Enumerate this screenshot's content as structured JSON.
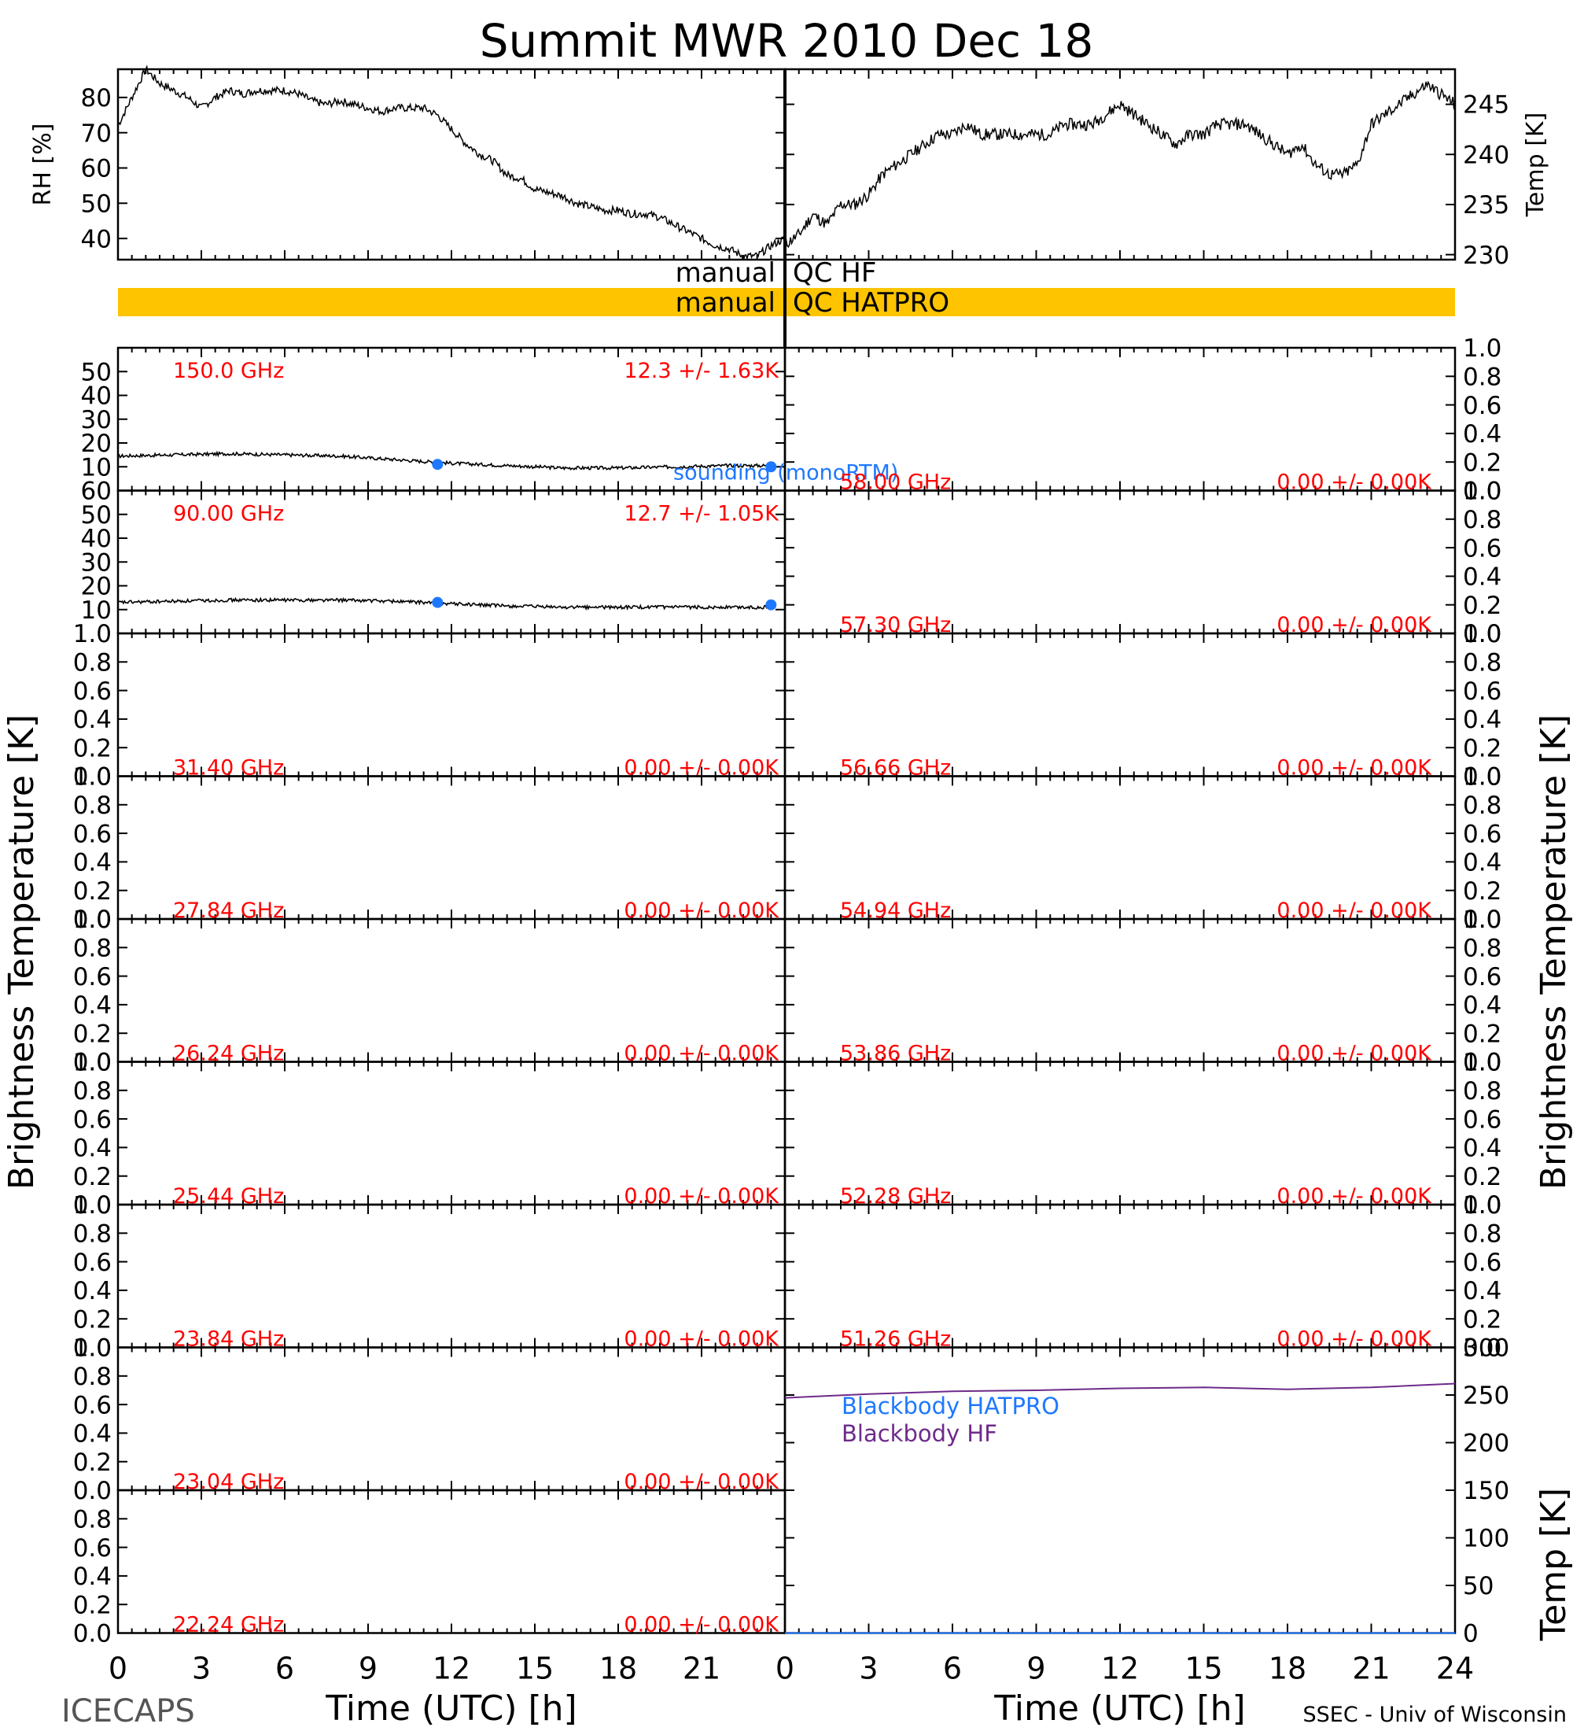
{
  "title": "Summit MWR 2010 Dec 18",
  "footer_left": "ICECAPS",
  "footer_right": "SSEC - Univ of Wisconsin",
  "qc": {
    "hf_label": "manual QC HF",
    "hatpro_label": "manual QC HATPRO"
  },
  "colors": {
    "axis": "#000000",
    "channel_label": "#ff0000",
    "sounding": "#1e78ff",
    "qc_hatpro_bar": "#ffc400",
    "blackbody_hatpro": "#1e78ff",
    "blackbody_hf": "#6e2a8a"
  },
  "chart_data": [
    {
      "id": "rh",
      "type": "line",
      "ylabel": "RH [%]",
      "xlim": [
        0,
        24
      ],
      "ylim": [
        34,
        88
      ],
      "yticks": [
        40,
        50,
        60,
        70,
        80
      ],
      "x": [
        0,
        0.5,
        1,
        1.5,
        2,
        2.5,
        3,
        3.5,
        4,
        4.5,
        5,
        5.5,
        6,
        6.5,
        7,
        7.5,
        8,
        8.5,
        9,
        9.5,
        10,
        10.5,
        11,
        11.5,
        12,
        12.5,
        13,
        13.5,
        14,
        14.5,
        15,
        15.5,
        16,
        16.5,
        17,
        17.5,
        18,
        18.5,
        19,
        19.5,
        20,
        20.5,
        21,
        21.5,
        22,
        22.5,
        23,
        23.5,
        24
      ],
      "values": [
        72,
        80,
        88,
        84,
        82,
        80,
        77,
        80,
        82,
        81,
        82,
        82,
        82,
        81,
        79,
        78,
        79,
        78,
        77,
        76,
        77,
        77,
        77,
        75,
        71,
        67,
        64,
        62,
        58,
        57,
        54,
        53,
        52,
        50,
        49,
        48,
        48,
        47,
        47,
        46,
        44,
        42,
        40,
        38,
        37,
        35,
        35,
        38,
        40
      ]
    },
    {
      "id": "temp",
      "type": "line",
      "ylabel": "Temp [K]",
      "xlim": [
        0,
        24
      ],
      "ylim": [
        229.5,
        248.5
      ],
      "yticks": [
        230,
        235,
        240,
        245
      ],
      "x": [
        0,
        0.5,
        1,
        1.5,
        2,
        2.5,
        3,
        3.5,
        4,
        4.5,
        5,
        5.5,
        6,
        6.5,
        7,
        7.5,
        8,
        8.5,
        9,
        9.5,
        10,
        10.5,
        11,
        11.5,
        12,
        12.5,
        13,
        13.5,
        14,
        14.5,
        15,
        15.5,
        16,
        16.5,
        17,
        17.5,
        18,
        18.5,
        19,
        19.5,
        20,
        20.5,
        21,
        21.5,
        22,
        22.5,
        23,
        23.5,
        24
      ],
      "values": [
        231,
        232,
        234,
        233,
        235,
        235,
        236,
        238,
        239,
        240,
        241,
        242,
        242,
        243,
        242,
        242,
        242,
        242,
        242,
        242,
        243,
        243,
        243,
        244,
        245,
        244,
        243,
        242,
        241,
        242,
        242,
        243,
        243,
        243,
        242,
        241,
        240,
        241,
        239,
        238,
        238,
        239,
        243,
        244,
        245,
        246,
        247,
        246,
        245
      ]
    },
    {
      "id": "blackbody",
      "type": "line",
      "ylabel": "Temp [K]",
      "xlim": [
        0,
        24
      ],
      "ylim": [
        0,
        300
      ],
      "yticks": [
        0,
        50,
        100,
        150,
        200,
        250,
        300
      ],
      "xlabel": "Time (UTC) [h]",
      "xticks": [
        0,
        3,
        6,
        9,
        12,
        15,
        18,
        21,
        24
      ],
      "series": [
        {
          "name": "Blackbody HATPRO",
          "x": [
            0,
            24
          ],
          "values": [
            0,
            0
          ]
        },
        {
          "name": "Blackbody HF",
          "x": [
            0,
            3,
            6,
            9,
            12,
            15,
            18,
            21,
            24
          ],
          "values": [
            247,
            251,
            254,
            255,
            257,
            258,
            256,
            258,
            262
          ]
        }
      ]
    },
    {
      "id": "tb_channels",
      "type": "line",
      "ylabel": "Brightness Temperature [K]",
      "xlabel": "Time (UTC) [h]",
      "xlim": [
        0,
        24
      ],
      "xticks": [
        0,
        3,
        6,
        9,
        12,
        15,
        18,
        21
      ],
      "sounding_label": "sounding (monoRTM)",
      "panels": [
        {
          "column": "left",
          "label": "150.0 GHz",
          "stats": "12.3 +/- 1.63K",
          "ylim": [
            0,
            60
          ],
          "yticks": [
            10,
            20,
            30,
            40,
            50
          ],
          "x": [
            0,
            2,
            4,
            6,
            8,
            10,
            12,
            14,
            16,
            18,
            20,
            22,
            23.5
          ],
          "values": [
            14.5,
            15,
            15.5,
            15,
            14.5,
            13,
            11.5,
            10.5,
            9.5,
            9.5,
            10,
            10.5,
            10.5
          ],
          "sounding_x": [
            11.5,
            23.5
          ],
          "sounding_values": [
            11,
            10
          ]
        },
        {
          "column": "left",
          "label": "90.00 GHz",
          "stats": "12.7 +/- 1.05K",
          "ylim": [
            0,
            60
          ],
          "yticks": [
            10,
            20,
            30,
            40,
            50,
            60
          ],
          "x": [
            0,
            2,
            4,
            6,
            8,
            10,
            12,
            14,
            16,
            18,
            20,
            22,
            23.5
          ],
          "values": [
            13,
            13.5,
            14,
            14,
            14,
            13.5,
            12.5,
            11.5,
            11,
            11,
            11,
            11,
            11
          ],
          "sounding_x": [
            11.5,
            23.5
          ],
          "sounding_values": [
            13,
            12
          ]
        },
        {
          "column": "left",
          "label": "31.40 GHz",
          "stats": "0.00 +/- 0.00K",
          "ylim": [
            0,
            1
          ],
          "yticks": [
            0.0,
            0.2,
            0.4,
            0.6,
            0.8,
            1.0
          ]
        },
        {
          "column": "left",
          "label": "27.84 GHz",
          "stats": "0.00 +/- 0.00K",
          "ylim": [
            0,
            1
          ],
          "yticks": [
            0.0,
            0.2,
            0.4,
            0.6,
            0.8,
            1.0
          ]
        },
        {
          "column": "left",
          "label": "26.24 GHz",
          "stats": "0.00 +/- 0.00K",
          "ylim": [
            0,
            1
          ],
          "yticks": [
            0.0,
            0.2,
            0.4,
            0.6,
            0.8,
            1.0
          ]
        },
        {
          "column": "left",
          "label": "25.44 GHz",
          "stats": "0.00 +/- 0.00K",
          "ylim": [
            0,
            1
          ],
          "yticks": [
            0.0,
            0.2,
            0.4,
            0.6,
            0.8,
            1.0
          ]
        },
        {
          "column": "left",
          "label": "23.84 GHz",
          "stats": "0.00 +/- 0.00K",
          "ylim": [
            0,
            1
          ],
          "yticks": [
            0.0,
            0.2,
            0.4,
            0.6,
            0.8,
            1.0
          ]
        },
        {
          "column": "left",
          "label": "23.04 GHz",
          "stats": "0.00 +/- 0.00K",
          "ylim": [
            0,
            1
          ],
          "yticks": [
            0.0,
            0.2,
            0.4,
            0.6,
            0.8,
            1.0
          ]
        },
        {
          "column": "left",
          "label": "22.24 GHz",
          "stats": "0.00 +/- 0.00K",
          "ylim": [
            0,
            1
          ],
          "yticks": [
            0.0,
            0.2,
            0.4,
            0.6,
            0.8
          ]
        },
        {
          "column": "right",
          "label": "58.00 GHz",
          "stats": "0.00 +/- 0.00K",
          "ylim": [
            0,
            1
          ],
          "yticks": [
            0.0,
            0.2,
            0.4,
            0.6,
            0.8,
            1.0
          ]
        },
        {
          "column": "right",
          "label": "57.30 GHz",
          "stats": "0.00 +/- 0.00K",
          "ylim": [
            0,
            1
          ],
          "yticks": [
            0.0,
            0.2,
            0.4,
            0.6,
            0.8,
            1.0
          ]
        },
        {
          "column": "right",
          "label": "56.66 GHz",
          "stats": "0.00 +/- 0.00K",
          "ylim": [
            0,
            1
          ],
          "yticks": [
            0.0,
            0.2,
            0.4,
            0.6,
            0.8,
            1.0
          ]
        },
        {
          "column": "right",
          "label": "54.94 GHz",
          "stats": "0.00 +/- 0.00K",
          "ylim": [
            0,
            1
          ],
          "yticks": [
            0.0,
            0.2,
            0.4,
            0.6,
            0.8,
            1.0
          ]
        },
        {
          "column": "right",
          "label": "53.86 GHz",
          "stats": "0.00 +/- 0.00K",
          "ylim": [
            0,
            1
          ],
          "yticks": [
            0.0,
            0.2,
            0.4,
            0.6,
            0.8,
            1.0
          ]
        },
        {
          "column": "right",
          "label": "52.28 GHz",
          "stats": "0.00 +/- 0.00K",
          "ylim": [
            0,
            1
          ],
          "yticks": [
            0.0,
            0.2,
            0.4,
            0.6,
            0.8,
            1.0
          ]
        },
        {
          "column": "right",
          "label": "51.26 GHz",
          "stats": "0.00 +/- 0.00K",
          "ylim": [
            0,
            1
          ],
          "yticks": [
            0.0,
            0.2,
            0.4,
            0.6,
            0.8,
            1.0
          ]
        }
      ]
    }
  ]
}
